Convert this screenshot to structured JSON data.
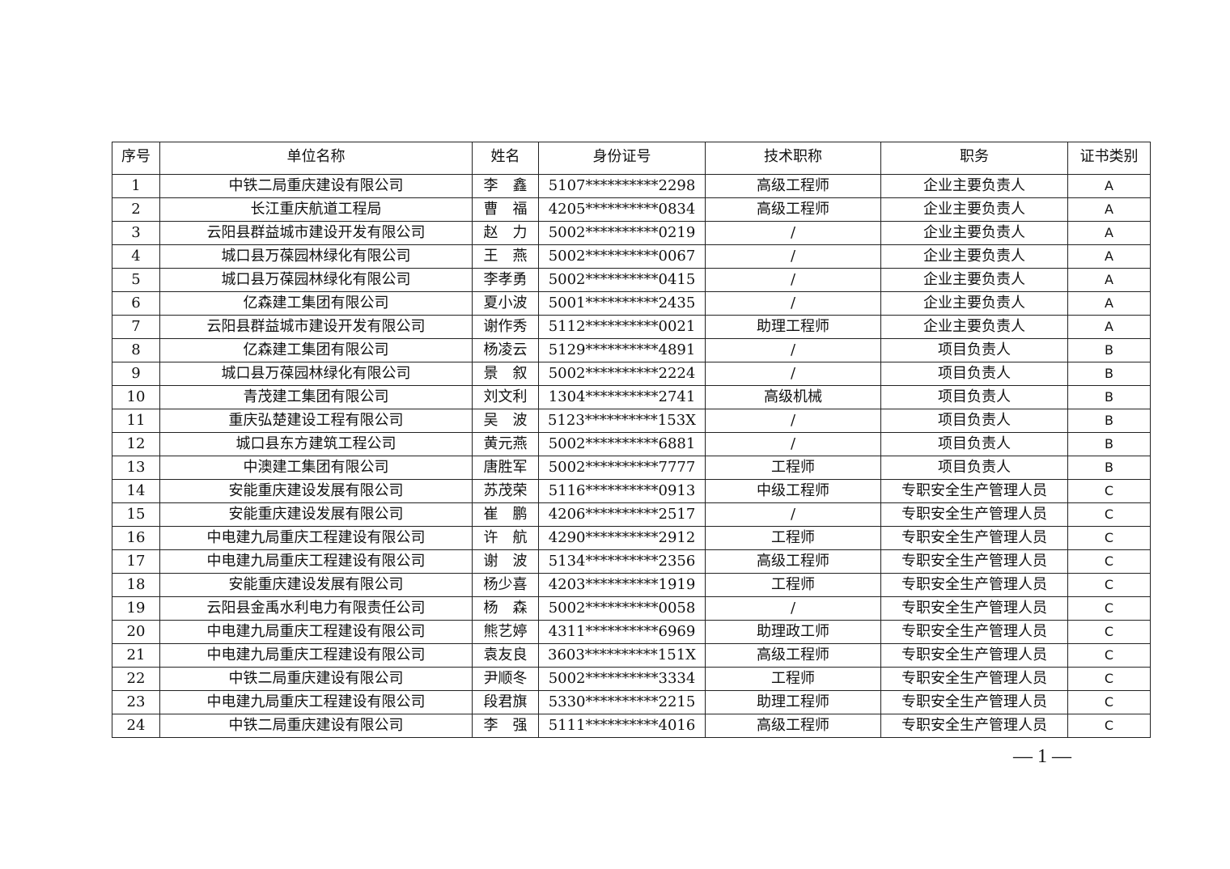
{
  "table": {
    "headers": [
      "序号",
      "单位名称",
      "姓名",
      "身份证号",
      "技术职称",
      "职务",
      "证书类别"
    ],
    "rows": [
      [
        "1",
        "中铁二局重庆建设有限公司",
        "李　鑫",
        "5107**********2298",
        "高级工程师",
        "企业主要负责人",
        "A"
      ],
      [
        "2",
        "长江重庆航道工程局",
        "曹　福",
        "4205**********0834",
        "高级工程师",
        "企业主要负责人",
        "A"
      ],
      [
        "3",
        "云阳县群益城市建设开发有限公司",
        "赵　力",
        "5002**********0219",
        "/",
        "企业主要负责人",
        "A"
      ],
      [
        "4",
        "城口县万葆园林绿化有限公司",
        "王　燕",
        "5002**********0067",
        "/",
        "企业主要负责人",
        "A"
      ],
      [
        "5",
        "城口县万葆园林绿化有限公司",
        "李孝勇",
        "5002**********0415",
        "/",
        "企业主要负责人",
        "A"
      ],
      [
        "6",
        "亿森建工集团有限公司",
        "夏小波",
        "5001**********2435",
        "/",
        "企业主要负责人",
        "A"
      ],
      [
        "7",
        "云阳县群益城市建设开发有限公司",
        "谢作秀",
        "5112**********0021",
        "助理工程师",
        "企业主要负责人",
        "A"
      ],
      [
        "8",
        "亿森建工集团有限公司",
        "杨凌云",
        "5129**********4891",
        "/",
        "项目负责人",
        "B"
      ],
      [
        "9",
        "城口县万葆园林绿化有限公司",
        "景　叙",
        "5002**********2224",
        "/",
        "项目负责人",
        "B"
      ],
      [
        "10",
        "青茂建工集团有限公司",
        "刘文利",
        "1304**********2741",
        "高级机械",
        "项目负责人",
        "B"
      ],
      [
        "11",
        "重庆弘楚建设工程有限公司",
        "吴　波",
        "5123**********153X",
        "/",
        "项目负责人",
        "B"
      ],
      [
        "12",
        "城口县东方建筑工程公司",
        "黄元燕",
        "5002**********6881",
        "/",
        "项目负责人",
        "B"
      ],
      [
        "13",
        "中澳建工集团有限公司",
        "唐胜军",
        "5002**********7777",
        "工程师",
        "项目负责人",
        "B"
      ],
      [
        "14",
        "安能重庆建设发展有限公司",
        "苏茂荣",
        "5116**********0913",
        "中级工程师",
        "专职安全生产管理人员",
        "C"
      ],
      [
        "15",
        "安能重庆建设发展有限公司",
        "崔　鹏",
        "4206**********2517",
        "/",
        "专职安全生产管理人员",
        "C"
      ],
      [
        "16",
        "中电建九局重庆工程建设有限公司",
        "许　航",
        "4290**********2912",
        "工程师",
        "专职安全生产管理人员",
        "C"
      ],
      [
        "17",
        "中电建九局重庆工程建设有限公司",
        "谢　波",
        "5134**********2356",
        "高级工程师",
        "专职安全生产管理人员",
        "C"
      ],
      [
        "18",
        "安能重庆建设发展有限公司",
        "杨少喜",
        "4203**********1919",
        "工程师",
        "专职安全生产管理人员",
        "C"
      ],
      [
        "19",
        "云阳县金禹水利电力有限责任公司",
        "杨　森",
        "5002**********0058",
        "/",
        "专职安全生产管理人员",
        "C"
      ],
      [
        "20",
        "中电建九局重庆工程建设有限公司",
        "熊艺婷",
        "4311**********6969",
        "助理政工师",
        "专职安全生产管理人员",
        "C"
      ],
      [
        "21",
        "中电建九局重庆工程建设有限公司",
        "袁友良",
        "3603**********151X",
        "高级工程师",
        "专职安全生产管理人员",
        "C"
      ],
      [
        "22",
        "中铁二局重庆建设有限公司",
        "尹顺冬",
        "5002**********3334",
        "工程师",
        "专职安全生产管理人员",
        "C"
      ],
      [
        "23",
        "中电建九局重庆工程建设有限公司",
        "段君旗",
        "5330**********2215",
        "助理工程师",
        "专职安全生产管理人员",
        "C"
      ],
      [
        "24",
        "中铁二局重庆建设有限公司",
        "李　强",
        "5111**********4016",
        "高级工程师",
        "专职安全生产管理人员",
        "C"
      ]
    ]
  },
  "page_number": "— 1 —"
}
